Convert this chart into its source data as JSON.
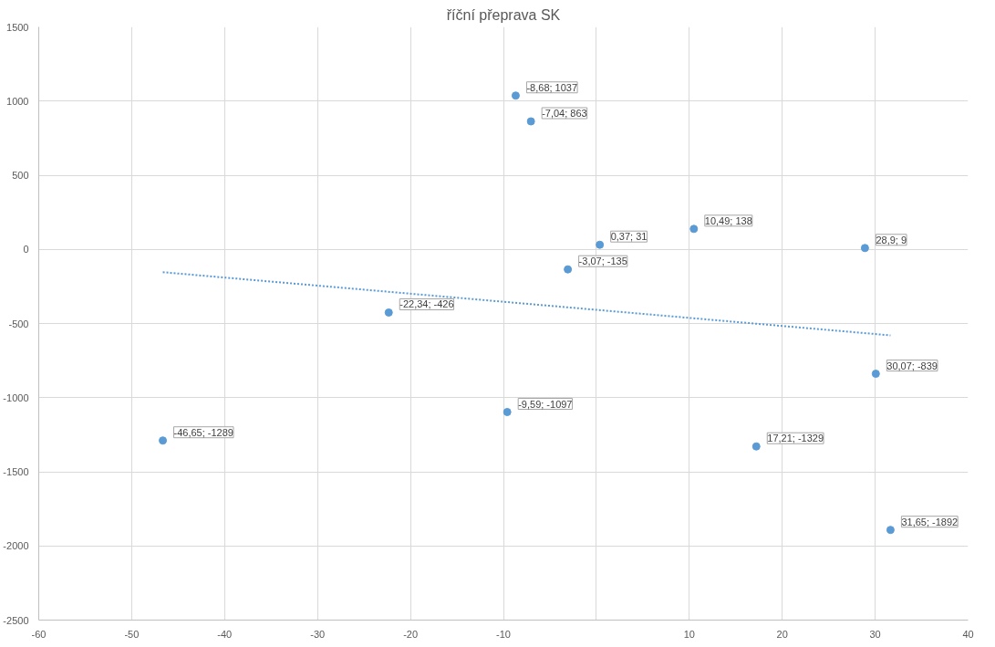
{
  "chart_data": {
    "type": "scatter",
    "title": "říční přeprava SK",
    "xlim": [
      -60,
      40
    ],
    "xticks": [
      -60,
      -50,
      -40,
      -30,
      -20,
      -10,
      {
        "value": 0,
        "label": null
      },
      10,
      20,
      30,
      40
    ],
    "ylim": [
      -2500,
      1500
    ],
    "yticks": [
      -2500,
      -2000,
      -1500,
      -1000,
      -500,
      0,
      500,
      1000,
      1500
    ],
    "grid": true,
    "series": [
      {
        "color": "#5b9bd5",
        "marker": "circle",
        "x": [
          -46.65,
          -22.34,
          -9.59,
          -3.07,
          0.37,
          -7.04,
          -8.68,
          10.49,
          17.21,
          28.9,
          30.07,
          31.65
        ],
        "values": [
          -1289,
          -426,
          -1097,
          -135,
          31,
          863,
          1037,
          138,
          -1329,
          9,
          -839,
          -1892
        ],
        "value_labels": [
          "-46,65; -1289",
          "-22,34; -426",
          "-9,59; -1097",
          "-3,07; -135",
          "0,37; 31",
          "-7,04; 863",
          "-8,68; 1037",
          "10,49; 138",
          "17,21; -1329",
          "28,9; 9",
          "30,07; -839",
          "31,65; -1892"
        ]
      },
      {
        "type": "line",
        "color": "#5b9bd5",
        "marker": "none",
        "line_style": "dotted",
        "x": [
          -46.65,
          31.65
        ],
        "values": [
          -154,
          -580
        ]
      }
    ]
  }
}
